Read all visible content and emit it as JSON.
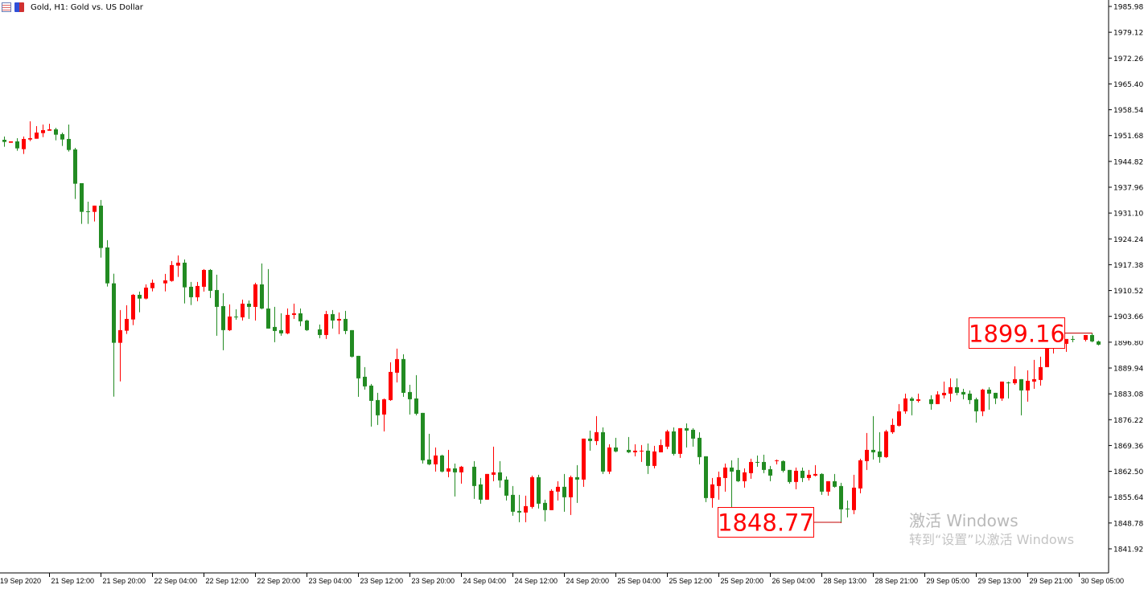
{
  "window": {
    "title": "Gold, H1:  Gold vs. US Dollar",
    "icons": [
      "chart-table-icon",
      "save-icon"
    ]
  },
  "watermark": {
    "line1": "激活 Windows",
    "line2": "转到“设置”以激活 Windows"
  },
  "chart_data": {
    "type": "candlestick",
    "symbol": "Gold",
    "timeframe": "H1",
    "ylim": [
      1841.92,
      1985.98
    ],
    "grid": false,
    "colors": {
      "up": "#ff0000",
      "down": "#228b22",
      "axis": "#000000",
      "label": "#ff0000"
    },
    "price_ticks": [
      "1985.98",
      "1979.12",
      "1972.26",
      "1965.40",
      "1958.54",
      "1951.68",
      "1944.82",
      "1937.96",
      "1931.10",
      "1924.24",
      "1917.38",
      "1910.52",
      "1903.66",
      "1896.80",
      "1889.94",
      "1883.08",
      "1876.22",
      "1869.36",
      "1862.50",
      "1855.64",
      "1848.78",
      "1841.92"
    ],
    "time_ticks": [
      "19 Sep 2020",
      "21 Sep 12:00",
      "21 Sep 20:00",
      "22 Sep 04:00",
      "22 Sep 12:00",
      "22 Sep 20:00",
      "23 Sep 04:00",
      "23 Sep 12:00",
      "23 Sep 20:00",
      "24 Sep 04:00",
      "24 Sep 12:00",
      "24 Sep 20:00",
      "25 Sep 04:00",
      "25 Sep 12:00",
      "25 Sep 20:00",
      "26 Sep 04:00",
      "28 Sep 13:00",
      "28 Sep 21:00",
      "29 Sep 05:00",
      "29 Sep 13:00",
      "29 Sep 21:00",
      "30 Sep 05:00"
    ],
    "annotations": {
      "high": {
        "text": "1899.16",
        "value": 1899.16
      },
      "low": {
        "text": "1848.77",
        "value": 1848.77
      }
    },
    "candles_format": [
      "open",
      "high",
      "low",
      "close"
    ],
    "candles": [
      [
        1950.56,
        1951.42,
        1948.71,
        1949.99
      ],
      [
        1949.77,
        1950.14,
        1949.77,
        1950.14
      ],
      [
        1950.14,
        1950.99,
        1947.64,
        1948.28
      ],
      [
        1948.07,
        1951.42,
        1946.79,
        1950.78
      ],
      [
        1950.63,
        1955.47,
        1950.2,
        1950.99
      ],
      [
        1950.84,
        1954.19,
        1950.84,
        1952.48
      ],
      [
        1952.33,
        1954.62,
        1951.27,
        1953.12
      ],
      [
        1952.97,
        1954.83,
        1952.97,
        1953.34
      ],
      [
        1953.34,
        1953.76,
        1950.41,
        1951.91
      ],
      [
        1952.06,
        1952.48,
        1948.92,
        1950.63
      ],
      [
        1950.78,
        1954.62,
        1947.43,
        1947.85
      ],
      [
        1948.0,
        1948.43,
        1934.84,
        1938.89
      ],
      [
        1939.04,
        1939.04,
        1928.22,
        1931.42
      ],
      [
        1931.57,
        1934.13,
        1928.22,
        1931.42
      ],
      [
        1931.42,
        1933.07,
        1928.86,
        1933.07
      ],
      [
        1933.07,
        1934.56,
        1919.26,
        1921.82
      ],
      [
        1921.97,
        1923.89,
        1911.58,
        1912.43
      ],
      [
        1912.43,
        1915.0,
        1882.35,
        1896.64
      ],
      [
        1896.64,
        1905.33,
        1886.4,
        1900.0
      ],
      [
        1899.85,
        1906.61,
        1898.99,
        1902.98
      ],
      [
        1902.83,
        1909.6,
        1901.34,
        1909.38
      ],
      [
        1909.38,
        1910.24,
        1904.75,
        1908.38
      ],
      [
        1908.38,
        1912.16,
        1908.17,
        1911.3
      ],
      [
        1911.15,
        1913.44,
        1910.3,
        1912.58
      ],
      null,
      [
        1912.43,
        1914.93,
        1910.3,
        1913.22
      ],
      [
        1913.07,
        1918.34,
        1912.86,
        1917.28
      ],
      [
        1917.13,
        1919.84,
        1914.14,
        1917.92
      ],
      [
        1917.92,
        1918.77,
        1907.1,
        1911.37
      ],
      [
        1911.52,
        1912.8,
        1906.67,
        1908.74
      ],
      [
        1908.74,
        1912.8,
        1907.68,
        1911.73
      ],
      [
        1911.52,
        1916.21,
        1910.24,
        1915.99
      ],
      [
        1915.99,
        1916.21,
        1908.53,
        1910.45
      ],
      [
        1910.66,
        1914.72,
        1898.5,
        1906.18
      ],
      [
        1906.39,
        1909.81,
        1894.66,
        1900.0
      ],
      [
        1900.0,
        1906.82,
        1899.78,
        1903.62
      ],
      [
        1903.62,
        1905.54,
        1902.77,
        1903.41
      ],
      [
        1903.41,
        1908.1,
        1902.56,
        1907.03
      ],
      [
        1907.03,
        1907.89,
        1902.98,
        1906.18
      ],
      [
        1906.18,
        1912.58,
        1902.56,
        1912.16
      ],
      [
        1912.16,
        1917.7,
        1905.54,
        1905.75
      ],
      [
        1905.75,
        1916.21,
        1900.42,
        1900.42
      ],
      [
        1900.85,
        1906.18,
        1896.79,
        1899.78
      ],
      [
        1900.0,
        1904.47,
        1898.5,
        1899.14
      ],
      [
        1899.14,
        1905.75,
        1898.93,
        1904.05
      ],
      [
        1904.05,
        1907.03,
        1902.98,
        1904.47
      ],
      [
        1904.47,
        1905.75,
        1901.06,
        1902.34
      ],
      [
        1902.56,
        1902.77,
        1899.78,
        1900.0
      ],
      null,
      [
        1900.21,
        1901.49,
        1897.86,
        1898.71
      ],
      [
        1898.71,
        1905.12,
        1897.65,
        1904.26
      ],
      [
        1904.26,
        1905.33,
        1900.42,
        1902.56
      ],
      [
        1902.56,
        1904.69,
        1898.93,
        1902.98
      ],
      [
        1902.98,
        1905.12,
        1898.93,
        1899.78
      ],
      [
        1900.0,
        1900.0,
        1892.74,
        1892.95
      ],
      [
        1893.17,
        1893.17,
        1882.28,
        1887.19
      ],
      [
        1887.62,
        1890.18,
        1884.2,
        1885.06
      ],
      [
        1885.27,
        1885.7,
        1874.39,
        1881.22
      ],
      [
        1881.43,
        1883.35,
        1874.82,
        1877.38
      ],
      [
        1877.59,
        1881.86,
        1873.11,
        1881.64
      ],
      [
        1881.43,
        1891.46,
        1881.22,
        1888.9
      ],
      [
        1888.69,
        1895.09,
        1886.13,
        1892.32
      ],
      [
        1892.32,
        1893.59,
        1882.28,
        1883.35
      ],
      [
        1883.57,
        1885.48,
        1877.59,
        1881.64
      ],
      [
        1881.86,
        1888.04,
        1877.38,
        1877.8
      ],
      [
        1878.02,
        1878.02,
        1864.58,
        1865.43
      ],
      [
        1865.64,
        1872.47,
        1864.15,
        1864.36
      ],
      [
        1864.36,
        1868.84,
        1862.44,
        1866.71
      ],
      [
        1866.71,
        1866.92,
        1862.23,
        1862.44
      ],
      [
        1862.44,
        1868.2,
        1860.95,
        1863.29
      ],
      [
        1863.29,
        1864.58,
        1855.83,
        1862.23
      ],
      [
        1862.23,
        1863.94,
        1859.24,
        1863.72
      ],
      null,
      [
        1863.72,
        1865.22,
        1855.18,
        1858.6
      ],
      [
        1859.03,
        1860.73,
        1853.9,
        1854.97
      ],
      [
        1854.97,
        1861.8,
        1854.97,
        1861.8
      ],
      [
        1861.59,
        1869.06,
        1859.88,
        1862.23
      ],
      [
        1862.23,
        1865.22,
        1858.17,
        1860.09
      ],
      [
        1860.31,
        1861.16,
        1854.76,
        1856.04
      ],
      [
        1856.25,
        1858.6,
        1850.7,
        1851.77
      ],
      [
        1851.98,
        1856.25,
        1849.0,
        1851.56
      ],
      [
        1851.56,
        1856.04,
        1849.0,
        1853.26
      ],
      [
        1853.05,
        1861.37,
        1852.62,
        1860.95
      ],
      [
        1860.95,
        1861.59,
        1852.62,
        1853.9
      ],
      [
        1854.12,
        1854.97,
        1849.2,
        1852.2
      ],
      [
        1852.2,
        1857.74,
        1852.2,
        1857.32
      ],
      [
        1857.11,
        1859.88,
        1854.76,
        1858.39
      ],
      [
        1858.39,
        1861.8,
        1851.77,
        1855.61
      ],
      [
        1855.61,
        1861.37,
        1850.92,
        1860.95
      ],
      [
        1860.95,
        1864.15,
        1854.12,
        1860.31
      ],
      [
        1860.31,
        1871.19,
        1858.39,
        1871.19
      ],
      [
        1871.19,
        1873.33,
        1867.99,
        1870.55
      ],
      [
        1870.55,
        1877.16,
        1869.48,
        1872.9
      ],
      [
        1872.9,
        1874.18,
        1861.8,
        1862.44
      ],
      [
        1862.44,
        1869.69,
        1861.8,
        1868.84
      ],
      [
        1868.84,
        1871.4,
        1867.56,
        1867.78
      ],
      null,
      [
        1868.2,
        1871.62,
        1867.35,
        1867.56
      ],
      [
        1867.56,
        1869.69,
        1866.5,
        1867.99
      ],
      [
        1867.78,
        1869.48,
        1864.99,
        1867.99
      ],
      [
        1867.99,
        1869.9,
        1861.8,
        1863.94
      ],
      [
        1863.94,
        1869.26,
        1863.29,
        1867.78
      ],
      [
        1867.56,
        1870.97,
        1867.56,
        1869.48
      ],
      [
        1869.06,
        1873.54,
        1868.42,
        1873.11
      ],
      [
        1873.11,
        1874.18,
        1866.71,
        1867.14
      ],
      [
        1867.14,
        1873.96,
        1866.07,
        1873.96
      ],
      [
        1873.96,
        1875.25,
        1868.84,
        1873.33
      ],
      [
        1873.54,
        1873.96,
        1869.06,
        1871.19
      ],
      [
        1871.4,
        1872.9,
        1864.36,
        1866.28
      ],
      [
        1866.5,
        1866.5,
        1854.33,
        1855.4
      ],
      [
        1855.4,
        1860.73,
        1852.84,
        1859.03
      ],
      [
        1858.6,
        1862.44,
        1854.97,
        1860.95
      ],
      [
        1860.73,
        1864.58,
        1857.11,
        1863.51
      ],
      [
        1863.51,
        1865.43,
        1852.62,
        1862.44
      ],
      [
        1862.87,
        1866.07,
        1859.67,
        1859.88
      ],
      [
        1859.88,
        1863.29,
        1858.17,
        1862.23
      ],
      [
        1862.01,
        1865.86,
        1860.52,
        1864.99
      ],
      [
        1864.99,
        1866.71,
        1863.72,
        1864.79
      ],
      [
        1864.99,
        1866.92,
        1862.01,
        1862.87
      ],
      [
        1863.08,
        1863.94,
        1859.88,
        1861.37
      ],
      [
        1865.22,
        1865.64,
        1864.36,
        1865.43
      ],
      [
        1865.22,
        1865.43,
        1862.23,
        1862.65
      ],
      [
        1862.87,
        1862.87,
        1859.24,
        1859.67
      ],
      [
        1859.67,
        1863.51,
        1857.74,
        1862.65
      ],
      [
        1862.65,
        1863.51,
        1859.67,
        1860.73
      ],
      [
        1860.73,
        1862.87,
        1860.09,
        1861.59
      ],
      [
        1861.37,
        1864.15,
        1861.16,
        1861.8
      ],
      [
        1861.8,
        1862.01,
        1856.25,
        1857.11
      ],
      [
        1857.11,
        1859.88,
        1856.04,
        1859.88
      ],
      [
        1859.88,
        1861.8,
        1858.17,
        1858.39
      ],
      [
        1858.6,
        1859.45,
        1848.77,
        1852.41
      ],
      [
        1852.62,
        1854.76,
        1850.28,
        1852.41
      ],
      [
        1852.2,
        1861.59,
        1851.13,
        1858.17
      ],
      [
        1857.96,
        1865.86,
        1856.68,
        1865.43
      ],
      [
        1865.22,
        1872.68,
        1862.87,
        1868.2
      ],
      [
        1868.2,
        1877.16,
        1865.64,
        1867.56
      ],
      [
        1867.78,
        1872.9,
        1864.79,
        1866.28
      ],
      [
        1866.28,
        1873.54,
        1866.07,
        1873.11
      ],
      [
        1872.9,
        1876.52,
        1872.47,
        1874.82
      ],
      [
        1874.6,
        1880.37,
        1874.39,
        1878.44
      ],
      [
        1878.44,
        1883.14,
        1877.8,
        1881.86
      ],
      [
        1881.86,
        1882.28,
        1877.38,
        1881.22
      ],
      [
        1881.22,
        1883.14,
        1880.79,
        1881.64
      ],
      null,
      [
        1881.64,
        1882.71,
        1878.87,
        1880.37
      ],
      [
        1880.37,
        1883.78,
        1880.37,
        1882.92
      ],
      [
        1882.71,
        1886.34,
        1881.86,
        1883.35
      ],
      [
        1883.14,
        1887.19,
        1881.0,
        1884.85
      ],
      [
        1884.85,
        1887.19,
        1882.71,
        1883.35
      ],
      [
        1883.57,
        1884.42,
        1881.64,
        1882.92
      ],
      [
        1883.14,
        1883.99,
        1880.37,
        1881.43
      ],
      [
        1881.64,
        1882.07,
        1875.46,
        1878.44
      ],
      [
        1878.44,
        1884.42,
        1877.16,
        1884.2
      ],
      [
        1884.2,
        1884.85,
        1878.87,
        1883.14
      ],
      [
        1883.35,
        1883.35,
        1880.37,
        1881.86
      ],
      [
        1881.86,
        1886.34,
        1881.22,
        1886.34
      ],
      [
        1886.13,
        1886.34,
        1881.86,
        1885.91
      ],
      [
        1885.91,
        1890.39,
        1885.48,
        1886.98
      ],
      [
        1886.98,
        1886.98,
        1877.38,
        1883.99
      ],
      [
        1883.99,
        1889.33,
        1881.0,
        1886.55
      ],
      [
        1886.34,
        1892.1,
        1884.42,
        1886.98
      ],
      [
        1886.77,
        1892.95,
        1885.27,
        1890.18
      ],
      [
        1890.18,
        1895.94,
        1890.18,
        1895.94
      ],
      [
        1895.51,
        1897.65,
        1893.81,
        1896.79
      ],
      [
        1896.79,
        1897.86,
        1895.51,
        1896.58
      ],
      [
        1896.37,
        1897.65,
        1894.23,
        1897.65
      ],
      [
        1897.65,
        1898.5,
        1896.79,
        1897.43
      ],
      null,
      [
        1897.43,
        1898.71,
        1897.01,
        1898.71
      ],
      [
        1898.71,
        1899.16,
        1896.79,
        1897.01
      ],
      [
        1897.01,
        1897.22,
        1895.94,
        1896.15
      ]
    ]
  }
}
